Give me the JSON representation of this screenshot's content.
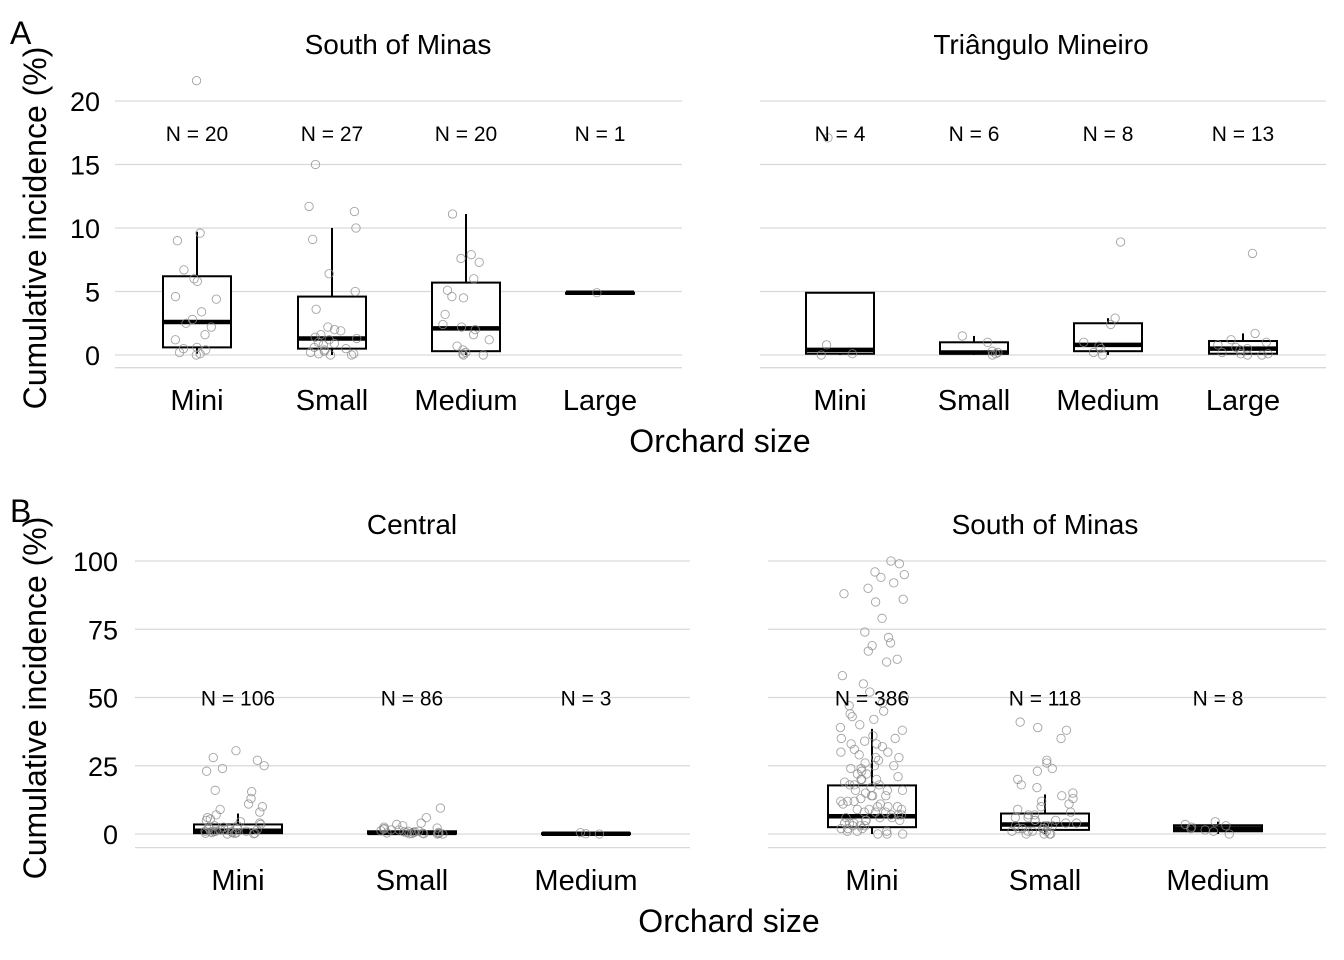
{
  "chart_data": [
    {
      "type": "box",
      "panel_label": "A",
      "title": "South of Minas",
      "ylabel": "Cumulative incidence (%)",
      "xlabel": "Orchard size",
      "ylim": [
        -1,
        22
      ],
      "yticks": [
        0,
        5,
        10,
        15,
        20
      ],
      "categories": [
        "Mini",
        "Small",
        "Medium",
        "Large"
      ],
      "n_labels": [
        "N = 20",
        "N = 27",
        "N = 20",
        "N = 1"
      ],
      "n_label_y": 17.5,
      "boxes": [
        {
          "q1": 0.6,
          "median": 2.6,
          "q3": 6.2,
          "lower": 0.1,
          "upper": 9.7
        },
        {
          "q1": 0.5,
          "median": 1.3,
          "q3": 4.6,
          "lower": 0.0,
          "upper": 10.0
        },
        {
          "q1": 0.3,
          "median": 2.1,
          "q3": 5.7,
          "lower": 0.0,
          "upper": 11.1
        },
        {
          "q1": 4.9,
          "median": 4.9,
          "q3": 4.9,
          "lower": 4.9,
          "upper": 4.9
        }
      ],
      "points": [
        [
          21.6,
          9.6,
          9.0,
          6.7,
          6.0,
          5.8,
          4.6,
          4.4,
          3.4,
          2.8,
          2.5,
          2.2,
          1.6,
          1.2,
          0.6,
          0.5,
          0.4,
          0.2,
          0.1,
          0.0
        ],
        [
          15.0,
          11.7,
          11.3,
          10.0,
          9.1,
          6.4,
          5.0,
          3.6,
          2.2,
          2.0,
          1.9,
          1.6,
          1.4,
          1.3,
          1.2,
          1.0,
          0.9,
          0.8,
          0.6,
          0.5,
          0.4,
          0.3,
          0.2,
          0.1,
          0.1,
          0.0,
          0.0
        ],
        [
          11.1,
          7.9,
          7.6,
          7.3,
          6.0,
          5.1,
          4.6,
          4.5,
          3.2,
          2.4,
          2.2,
          2.0,
          1.6,
          1.2,
          0.7,
          0.4,
          0.2,
          0.1,
          0.0,
          0.0
        ],
        [
          4.9
        ]
      ]
    },
    {
      "type": "box",
      "panel_label": "",
      "title": "Triângulo Mineiro",
      "ylim": [
        -1,
        22
      ],
      "categories": [
        "Mini",
        "Small",
        "Medium",
        "Large"
      ],
      "n_labels": [
        "N = 4",
        "N = 6",
        "N = 8",
        "N = 13"
      ],
      "n_label_y": 17.5,
      "boxes": [
        {
          "q1": 0.1,
          "median": 0.4,
          "q3": 4.9,
          "lower": 0.0,
          "upper": 4.9
        },
        {
          "q1": 0.1,
          "median": 0.2,
          "q3": 1.0,
          "lower": 0.0,
          "upper": 1.5
        },
        {
          "q1": 0.3,
          "median": 0.8,
          "q3": 2.5,
          "lower": 0.0,
          "upper": 2.9
        },
        {
          "q1": 0.1,
          "median": 0.5,
          "q3": 1.1,
          "lower": 0.0,
          "upper": 1.7
        }
      ],
      "points": [
        [
          17.1,
          0.8,
          0.1,
          0.0
        ],
        [
          1.5,
          1.0,
          0.3,
          0.2,
          0.1,
          0.0
        ],
        [
          8.9,
          2.9,
          2.4,
          1.0,
          0.7,
          0.5,
          0.2,
          0.0
        ],
        [
          8.0,
          1.7,
          1.2,
          1.0,
          0.8,
          0.6,
          0.5,
          0.4,
          0.2,
          0.1,
          0.1,
          0.0,
          0.0
        ]
      ]
    },
    {
      "type": "box",
      "panel_label": "B",
      "title": "Central",
      "ylabel": "Cumulative incidence (%)",
      "xlabel": "Orchard size",
      "ylim": [
        -5,
        102
      ],
      "yticks": [
        0,
        25,
        50,
        75,
        100
      ],
      "categories": [
        "Mini",
        "Small",
        "Medium"
      ],
      "n_labels": [
        "N = 106",
        "N = 86",
        "N = 3"
      ],
      "n_label_y": 50,
      "boxes": [
        {
          "q1": 0.3,
          "median": 1.2,
          "q3": 3.5,
          "lower": 0.0,
          "upper": 7.5
        },
        {
          "q1": 0.1,
          "median": 0.4,
          "q3": 1.0,
          "lower": 0.0,
          "upper": 2.2
        },
        {
          "q1": 0.0,
          "median": 0.1,
          "q3": 0.3,
          "lower": 0.0,
          "upper": 0.5
        }
      ],
      "points": [
        [
          30.5,
          28.0,
          27.0,
          25.0,
          24.0,
          23.0,
          16.0,
          15.5,
          13.0,
          11.0,
          10.0,
          9.0,
          8.0,
          7.0,
          6.0,
          5.5,
          5.0,
          4.5,
          4.0,
          3.5,
          3.0,
          3.0,
          2.5,
          2.5,
          2.0,
          2.0,
          2.0,
          1.5,
          1.5,
          1.5,
          1.0,
          1.0,
          1.0,
          1.0,
          0.8,
          0.8,
          0.5,
          0.5,
          0.5,
          0.3,
          0.3,
          0.2,
          0.1,
          0.0
        ],
        [
          9.5,
          6.0,
          4.0,
          3.5,
          3.0,
          2.5,
          2.2,
          2.0,
          1.8,
          1.5,
          1.5,
          1.2,
          1.0,
          1.0,
          0.8,
          0.8,
          0.6,
          0.5,
          0.5,
          0.4,
          0.3,
          0.3,
          0.2,
          0.2,
          0.1,
          0.1,
          0.0,
          0.0
        ],
        [
          0.5,
          0.1,
          0.0
        ]
      ]
    },
    {
      "type": "box",
      "panel_label": "",
      "title": "South of Minas",
      "ylim": [
        -5,
        102
      ],
      "categories": [
        "Mini",
        "Small",
        "Medium"
      ],
      "n_labels": [
        "N = 386",
        "N = 118",
        "N = 8"
      ],
      "n_label_y": 50,
      "boxes": [
        {
          "q1": 2.5,
          "median": 6.5,
          "q3": 17.8,
          "lower": 0.0,
          "upper": 38.5
        },
        {
          "q1": 1.5,
          "median": 3.5,
          "q3": 7.5,
          "lower": 0.0,
          "upper": 14.5
        },
        {
          "q1": 1.0,
          "median": 2.0,
          "q3": 3.2,
          "lower": 0.0,
          "upper": 4.5
        }
      ],
      "points": [
        [
          100,
          99,
          96,
          95,
          94,
          92,
          90,
          88,
          86,
          85,
          79,
          74,
          72,
          70,
          69,
          67,
          64,
          63,
          58,
          55,
          52,
          50,
          48,
          47,
          45,
          44,
          43,
          42,
          40,
          39,
          38,
          36,
          35,
          34,
          33,
          32,
          31,
          30,
          29,
          28,
          27,
          26,
          25,
          24,
          23,
          22,
          21,
          20,
          19,
          18,
          17,
          16,
          15,
          14,
          13,
          12,
          11,
          10,
          9,
          8,
          7,
          6,
          5,
          4,
          3,
          2,
          1,
          0,
          35,
          30,
          25,
          22,
          20,
          18,
          16,
          14,
          12,
          11,
          10,
          9,
          8,
          7,
          6,
          5,
          4,
          3,
          2,
          1,
          0,
          0,
          1,
          2,
          3,
          4,
          5,
          6,
          7,
          8,
          9,
          10,
          12,
          14,
          16,
          18,
          20,
          24,
          28,
          33
        ],
        [
          41,
          39,
          38,
          35,
          27,
          26,
          24,
          23,
          20,
          18,
          17,
          15,
          14,
          13,
          12,
          11,
          10,
          9,
          8,
          7,
          7,
          6,
          6,
          5,
          5,
          4,
          4,
          3,
          3,
          3,
          2,
          2,
          2,
          1,
          1,
          1,
          0,
          0,
          0,
          5,
          3,
          2,
          1,
          0
        ],
        [
          4.5,
          3.5,
          3.0,
          2.5,
          2.0,
          1.5,
          1.0,
          0.0
        ]
      ]
    }
  ]
}
